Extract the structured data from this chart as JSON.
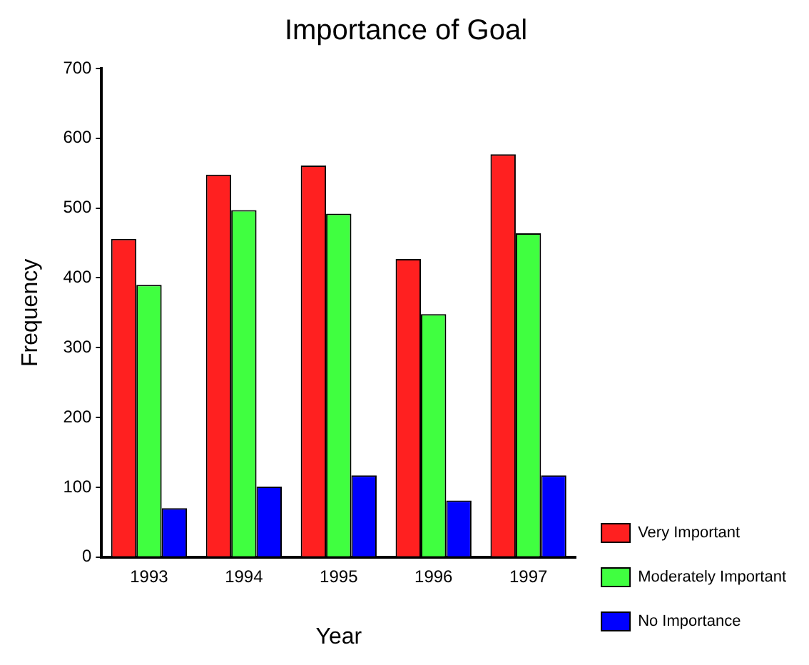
{
  "chart_data": {
    "type": "bar",
    "title": "Importance of Goal",
    "xlabel": "Year",
    "ylabel": "Frequency",
    "categories": [
      "1993",
      "1994",
      "1995",
      "1996",
      "1997"
    ],
    "series": [
      {
        "name": "Very Important",
        "color": "#ff2020",
        "values": [
          456,
          548,
          561,
          427,
          577
        ]
      },
      {
        "name": "Moderately Important",
        "color": "#40ff40",
        "values": [
          390,
          497,
          492,
          348,
          464
        ]
      },
      {
        "name": "No Importance",
        "color": "#0000ff",
        "values": [
          70,
          101,
          117,
          81,
          117
        ]
      }
    ],
    "ylim": [
      0,
      700
    ],
    "yticks": [
      0,
      100,
      200,
      300,
      400,
      500,
      600,
      700
    ],
    "grid": false,
    "legend": "right"
  }
}
